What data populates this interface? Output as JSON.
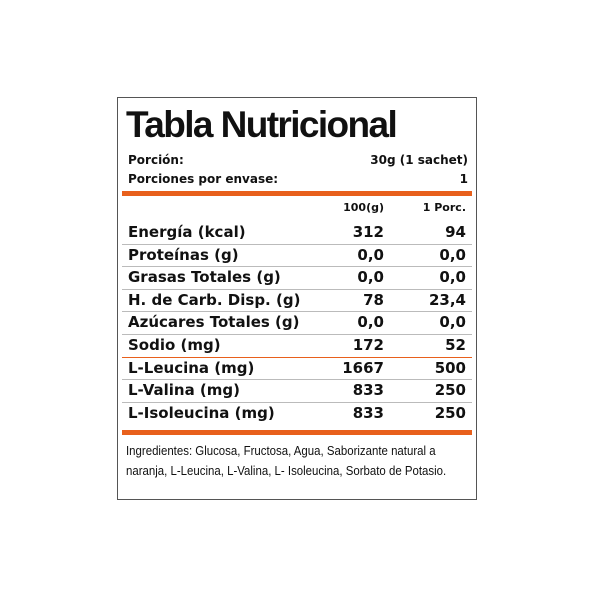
{
  "title": "Tabla Nutricional",
  "serving": {
    "label": "Porción:",
    "value": "30g (1 sachet)"
  },
  "servings_per_container": {
    "label": "Porciones por envase:",
    "value": "1"
  },
  "columns": [
    "100(g)",
    "1 Porc."
  ],
  "rows": [
    {
      "label": "Energía (kcal)",
      "per100": "312",
      "perServing": "94"
    },
    {
      "label": "Proteínas (g)",
      "per100": "0,0",
      "perServing": "0,0"
    },
    {
      "label": "Grasas Totales (g)",
      "per100": "0,0",
      "perServing": "0,0"
    },
    {
      "label": "H. de Carb. Disp. (g)",
      "per100": "78",
      "perServing": "23,4"
    },
    {
      "label": "Azúcares Totales (g)",
      "per100": "0,0",
      "perServing": "0,0"
    },
    {
      "label": "Sodio (mg)",
      "per100": "172",
      "perServing": "52"
    },
    {
      "label": "L-Leucina (mg)",
      "per100": "1667",
      "perServing": "500"
    },
    {
      "label": "L-Valina (mg)",
      "per100": "833",
      "perServing": "250"
    },
    {
      "label": "L-Isoleucina (mg)",
      "per100": "833",
      "perServing": "250"
    }
  ],
  "ingredients": "Ingredientes: Glucosa, Fructosa, Agua, Saborizante natural a naranja, L-Leucina, L-Valina, L- Isoleucina, Sorbato de Potasio.",
  "colors": {
    "accent": "#e8601c",
    "border": "#555555"
  }
}
